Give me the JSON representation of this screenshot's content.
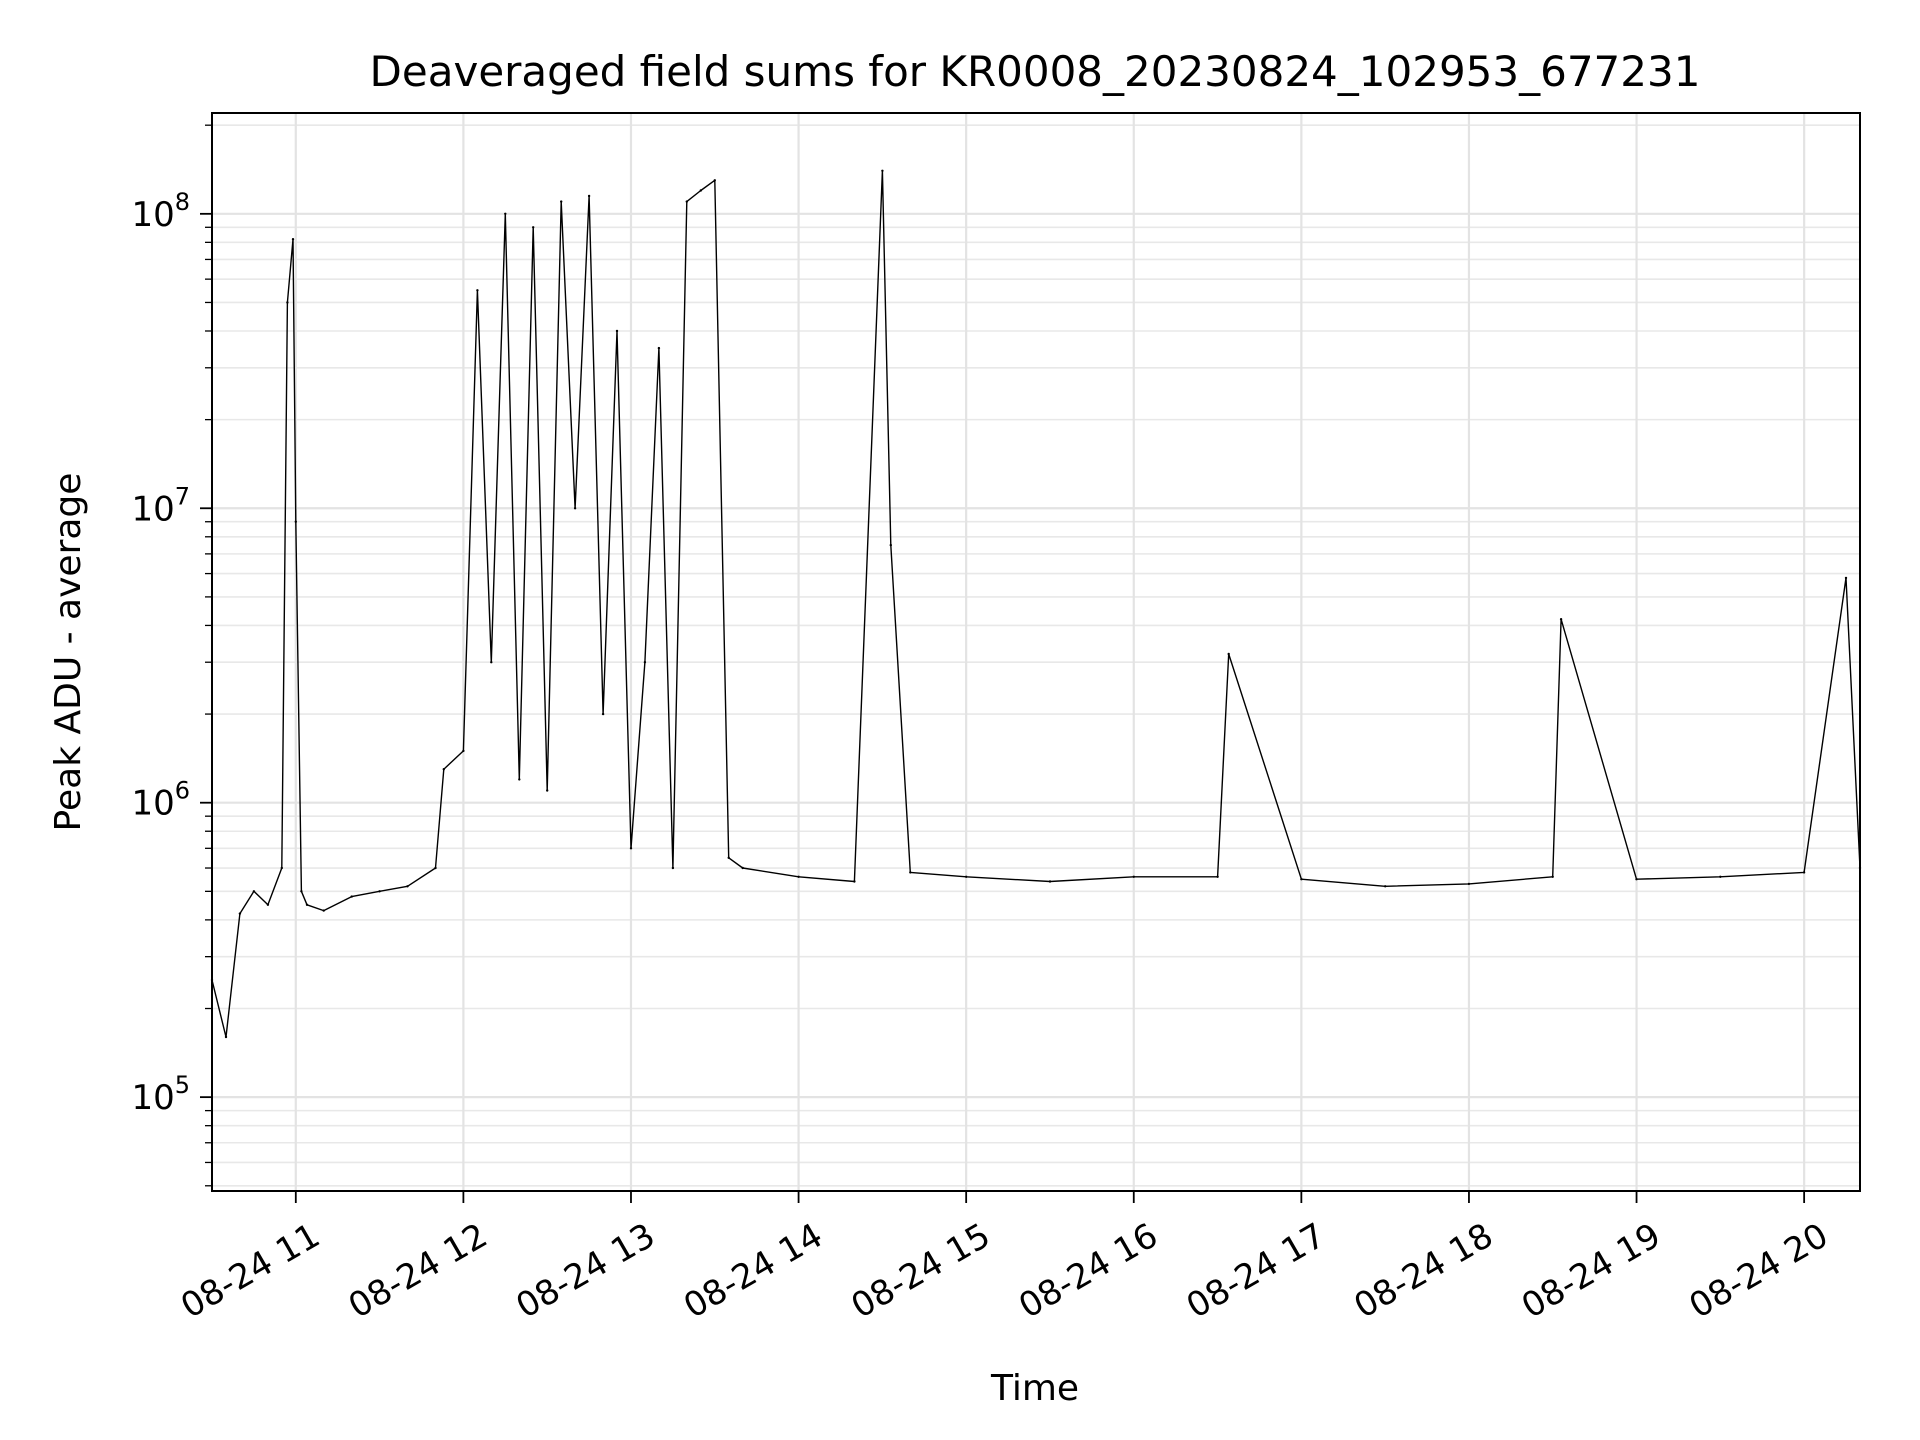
{
  "chart_data": {
    "type": "line",
    "title": "Deaveraged field sums for KR0008_20230824_102953_677231",
    "xlabel": "Time",
    "ylabel": "Peak ADU - average",
    "y_scale": "log",
    "ylim": [
      48000,
      220000000
    ],
    "xlim": [
      "2023-08-24 10:30",
      "2023-08-24 20:20"
    ],
    "x_ticks": [
      {
        "time": "2023-08-24 11:00",
        "label": "08-24 11"
      },
      {
        "time": "2023-08-24 12:00",
        "label": "08-24 12"
      },
      {
        "time": "2023-08-24 13:00",
        "label": "08-24 13"
      },
      {
        "time": "2023-08-24 14:00",
        "label": "08-24 14"
      },
      {
        "time": "2023-08-24 15:00",
        "label": "08-24 15"
      },
      {
        "time": "2023-08-24 16:00",
        "label": "08-24 16"
      },
      {
        "time": "2023-08-24 17:00",
        "label": "08-24 17"
      },
      {
        "time": "2023-08-24 18:00",
        "label": "08-24 18"
      },
      {
        "time": "2023-08-24 19:00",
        "label": "08-24 19"
      },
      {
        "time": "2023-08-24 20:00",
        "label": "08-24 20"
      }
    ],
    "y_ticks": [
      {
        "value": 100000,
        "base": "10",
        "exponent": "5"
      },
      {
        "value": 1000000,
        "base": "10",
        "exponent": "6"
      },
      {
        "value": 10000000,
        "base": "10",
        "exponent": "7"
      },
      {
        "value": 100000000,
        "base": "10",
        "exponent": "8"
      }
    ],
    "grid": true,
    "line_color": "#000000",
    "series": [
      {
        "x": [
          "2023-08-24 10:30",
          "2023-08-24 10:35",
          "2023-08-24 10:40",
          "2023-08-24 10:45",
          "2023-08-24 10:50",
          "2023-08-24 10:55",
          "2023-08-24 10:57",
          "2023-08-24 10:59",
          "2023-08-24 11:00",
          "2023-08-24 11:02",
          "2023-08-24 11:04",
          "2023-08-24 11:10",
          "2023-08-24 11:20",
          "2023-08-24 11:30",
          "2023-08-24 11:40",
          "2023-08-24 11:50",
          "2023-08-24 11:53",
          "2023-08-24 12:00",
          "2023-08-24 12:05",
          "2023-08-24 12:10",
          "2023-08-24 12:15",
          "2023-08-24 12:20",
          "2023-08-24 12:25",
          "2023-08-24 12:30",
          "2023-08-24 12:35",
          "2023-08-24 12:40",
          "2023-08-24 12:45",
          "2023-08-24 12:50",
          "2023-08-24 12:55",
          "2023-08-24 13:00",
          "2023-08-24 13:05",
          "2023-08-24 13:10",
          "2023-08-24 13:15",
          "2023-08-24 13:20",
          "2023-08-24 13:25",
          "2023-08-24 13:30",
          "2023-08-24 13:35",
          "2023-08-24 13:40",
          "2023-08-24 14:00",
          "2023-08-24 14:20",
          "2023-08-24 14:30",
          "2023-08-24 14:33",
          "2023-08-24 14:40",
          "2023-08-24 15:00",
          "2023-08-24 15:30",
          "2023-08-24 16:00",
          "2023-08-24 16:30",
          "2023-08-24 16:34",
          "2023-08-24 17:00",
          "2023-08-24 17:30",
          "2023-08-24 18:00",
          "2023-08-24 18:30",
          "2023-08-24 18:33",
          "2023-08-24 19:00",
          "2023-08-24 19:30",
          "2023-08-24 20:00",
          "2023-08-24 20:15",
          "2023-08-24 20:20"
        ],
        "values": [
          250000,
          160000,
          420000,
          500000,
          450000,
          600000,
          50000000,
          82000000,
          9000000,
          500000,
          450000,
          430000,
          480000,
          500000,
          520000,
          600000,
          1300000,
          1500000,
          55000000,
          3000000,
          100000000,
          1200000,
          90000000,
          1100000,
          110000000,
          10000000,
          115000000,
          2000000,
          40000000,
          700000,
          3000000,
          35000000,
          600000,
          110000000,
          120000000,
          130000000,
          650000,
          600000,
          560000,
          540000,
          140000000,
          7500000,
          580000,
          560000,
          540000,
          560000,
          560000,
          3200000,
          550000,
          520000,
          530000,
          560000,
          4200000,
          550000,
          560000,
          580000,
          5800000,
          600000
        ]
      }
    ]
  }
}
